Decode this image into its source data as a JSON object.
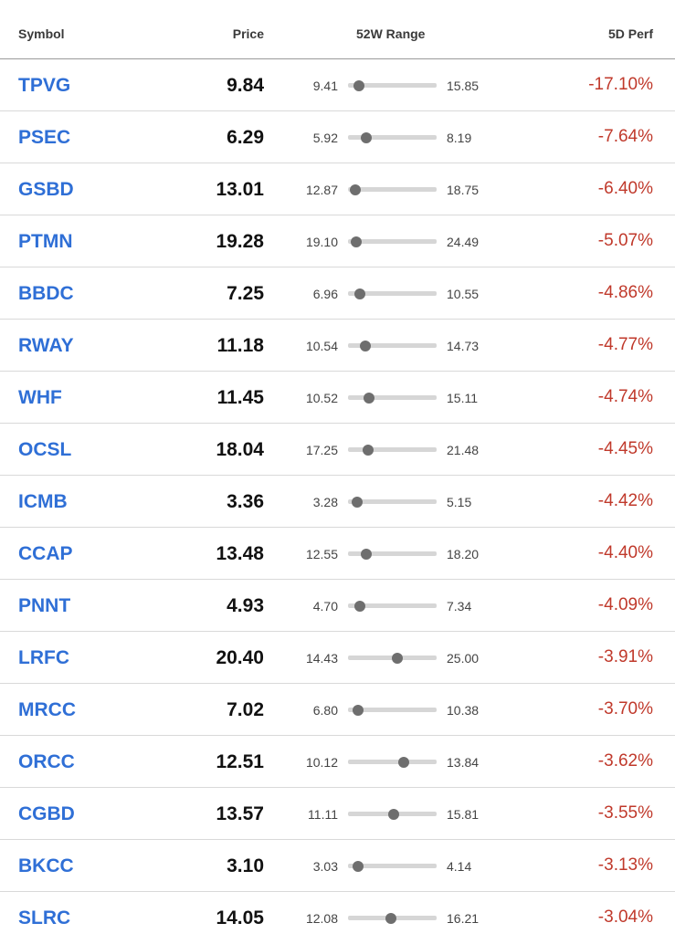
{
  "header": {
    "symbol": "Symbol",
    "price": "Price",
    "range": "52W Range",
    "perf": "5D Perf"
  },
  "colors": {
    "symbol_link": "#2f6fd6",
    "negative": "#c0392b",
    "range_track": "#d6d6d6",
    "range_marker": "#6e6e6e"
  },
  "rows": [
    {
      "symbol": "TPVG",
      "price": "9.84",
      "low": "9.41",
      "high": "15.85",
      "perf": "-17.10%"
    },
    {
      "symbol": "PSEC",
      "price": "6.29",
      "low": "5.92",
      "high": "8.19",
      "perf": "-7.64%"
    },
    {
      "symbol": "GSBD",
      "price": "13.01",
      "low": "12.87",
      "high": "18.75",
      "perf": "-6.40%"
    },
    {
      "symbol": "PTMN",
      "price": "19.28",
      "low": "19.10",
      "high": "24.49",
      "perf": "-5.07%"
    },
    {
      "symbol": "BBDC",
      "price": "7.25",
      "low": "6.96",
      "high": "10.55",
      "perf": "-4.86%"
    },
    {
      "symbol": "RWAY",
      "price": "11.18",
      "low": "10.54",
      "high": "14.73",
      "perf": "-4.77%"
    },
    {
      "symbol": "WHF",
      "price": "11.45",
      "low": "10.52",
      "high": "15.11",
      "perf": "-4.74%"
    },
    {
      "symbol": "OCSL",
      "price": "18.04",
      "low": "17.25",
      "high": "21.48",
      "perf": "-4.45%"
    },
    {
      "symbol": "ICMB",
      "price": "3.36",
      "low": "3.28",
      "high": "5.15",
      "perf": "-4.42%"
    },
    {
      "symbol": "CCAP",
      "price": "13.48",
      "low": "12.55",
      "high": "18.20",
      "perf": "-4.40%"
    },
    {
      "symbol": "PNNT",
      "price": "4.93",
      "low": "4.70",
      "high": "7.34",
      "perf": "-4.09%"
    },
    {
      "symbol": "LRFC",
      "price": "20.40",
      "low": "14.43",
      "high": "25.00",
      "perf": "-3.91%"
    },
    {
      "symbol": "MRCC",
      "price": "7.02",
      "low": "6.80",
      "high": "10.38",
      "perf": "-3.70%"
    },
    {
      "symbol": "ORCC",
      "price": "12.51",
      "low": "10.12",
      "high": "13.84",
      "perf": "-3.62%"
    },
    {
      "symbol": "CGBD",
      "price": "13.57",
      "low": "11.11",
      "high": "15.81",
      "perf": "-3.55%"
    },
    {
      "symbol": "BKCC",
      "price": "3.10",
      "low": "3.03",
      "high": "4.14",
      "perf": "-3.13%"
    },
    {
      "symbol": "SLRC",
      "price": "14.05",
      "low": "12.08",
      "high": "16.21",
      "perf": "-3.04%"
    }
  ]
}
